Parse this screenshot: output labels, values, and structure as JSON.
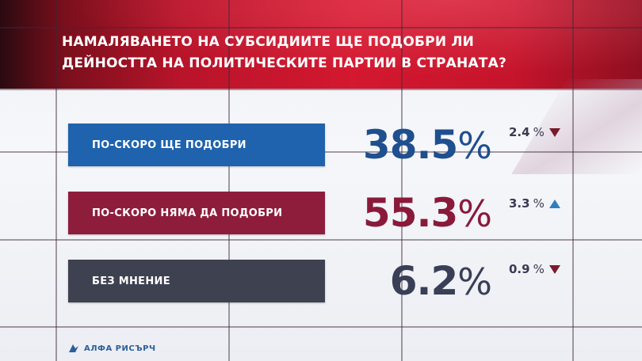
{
  "header": {
    "title_line1": "НАМАЛЯВАНЕТО НА СУБСИДИИТЕ ЩЕ ПОДОБРИ ЛИ",
    "title_line2": "ДЕЙНОСТТА НА ПОЛИТИЧЕСКИТЕ ПАРТИИ В СТРАНАТА?"
  },
  "footer": {
    "brand": "АЛФА РИСЪРЧ"
  },
  "colors": {
    "header_red": "#d3182f",
    "bar_blue": "#1f63ae",
    "bar_crimson": "#8e1d3c",
    "bar_slate": "#3e4150",
    "value_blue": "#1e4f8f",
    "value_crimson": "#8a1a3a",
    "value_slate": "#3a3f58",
    "arrow_down": "#7a1a2a",
    "arrow_up": "#2f7fbf"
  },
  "chart_data": {
    "type": "bar",
    "title": "НАМАЛЯВАНЕТО НА СУБСИДИИТЕ ЩЕ ПОДОБРИ ЛИ ДЕЙНОСТТА НА ПОЛИТИЧЕСКИТЕ ПАРТИИ В СТРАНАТА?",
    "categories": [
      "ПО-СКОРО ЩЕ ПОДОБРИ",
      "ПО-СКОРО НЯМА ДА ПОДОБРИ",
      "БЕЗ МНЕНИЕ"
    ],
    "values": [
      38.5,
      55.3,
      6.2
    ],
    "value_labels": [
      "38.5",
      "55.3",
      "6.2"
    ],
    "unit": "%",
    "changes": [
      {
        "value": "2.4",
        "unit": "%",
        "direction": "down"
      },
      {
        "value": "3.3",
        "unit": "%",
        "direction": "up"
      },
      {
        "value": "0.9",
        "unit": "%",
        "direction": "down"
      }
    ],
    "legend": "none",
    "grid": true
  }
}
